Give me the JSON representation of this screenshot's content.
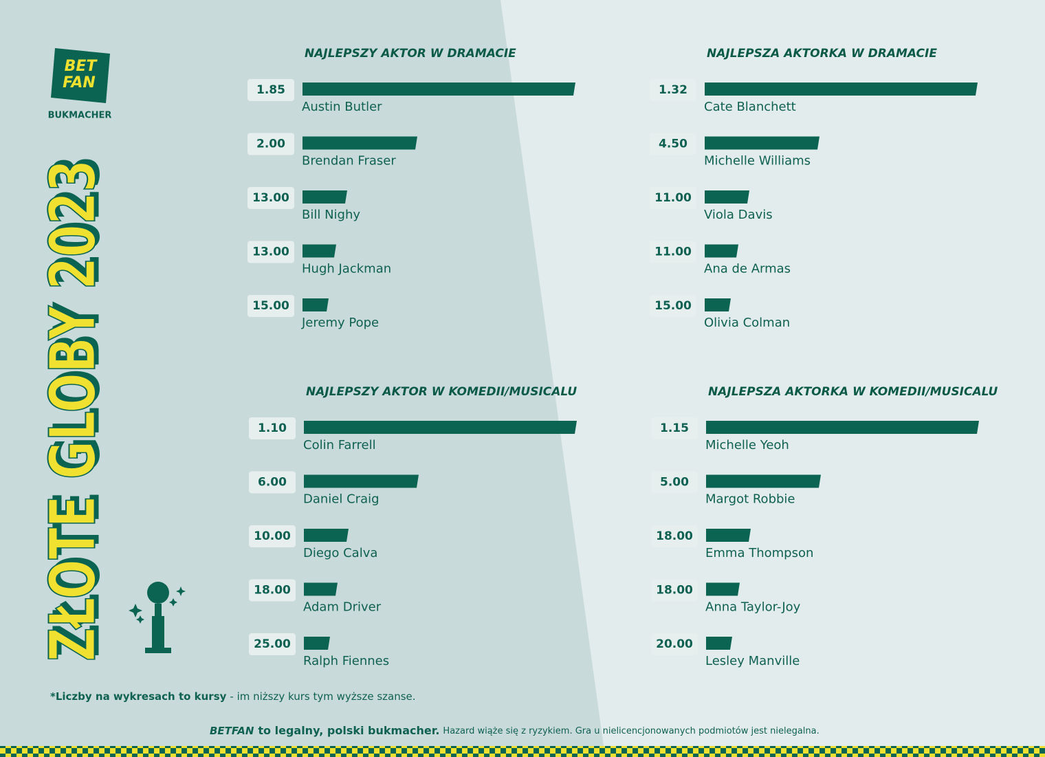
{
  "logo": {
    "line1": "BET",
    "line2": "FAN",
    "subtitle": "BUKMACHER"
  },
  "headline": "ZŁOTE GLOBY 2023",
  "footnote": {
    "bold": "*Liczby na wykresach to kursy",
    "rest": "- im niższy kurs tym wyższe szanse."
  },
  "footer": {
    "brand": "BETFAN",
    "bold": "to legalny, polski bukmacher.",
    "rest": "Hazard wiąże się z ryzykiem. Gra u nielicencjonowanych podmiotów jest nielegalna."
  },
  "chart_data": [
    {
      "type": "bar",
      "title": "NAJLEPSZY AKTOR W DRAMACIE",
      "color": "#0b6452",
      "categories": [
        "Austin Butler",
        "Brendan Fraser",
        "Bill Nighy",
        "Hugh Jackman",
        "Jeremy Pope"
      ],
      "values": [
        1.85,
        2,
        13,
        13,
        15
      ],
      "value_labels": [
        "1.85",
        "2.00",
        "13.00",
        "13.00",
        "15.00"
      ]
    },
    {
      "type": "bar",
      "title": "NAJLEPSZA AKTORKA W DRAMACIE",
      "color": "#0b6452",
      "categories": [
        "Cate Blanchett",
        "Michelle Williams",
        "Viola Davis",
        "Ana de Armas",
        "Olivia Colman"
      ],
      "values": [
        1.32,
        4.5,
        11,
        11,
        15
      ],
      "value_labels": [
        "1.32",
        "4.50",
        "11.00",
        "11.00",
        "15.00"
      ]
    },
    {
      "type": "bar",
      "title": "NAJLEPSZY AKTOR W KOMEDII/MUSICALU",
      "color": "#0b6452",
      "categories": [
        "Colin Farrell",
        "Daniel Craig",
        "Diego Calva",
        "Adam Driver",
        "Ralph Fiennes"
      ],
      "values": [
        1.1,
        6,
        10,
        18,
        25
      ],
      "value_labels": [
        "1.10",
        "6.00",
        "10.00",
        "18.00",
        "25.00"
      ]
    },
    {
      "type": "bar",
      "title": "NAJLEPSZA AKTORKA W KOMEDII/MUSICALU",
      "color": "#0b6452",
      "categories": [
        "Michelle Yeoh",
        "Margot Robbie",
        "Emma Thompson",
        "Anna Taylor-Joy",
        "Lesley Manville"
      ],
      "values": [
        1.15,
        5,
        18,
        18,
        20
      ],
      "value_labels": [
        "1.15",
        "5.00",
        "18.00",
        "18.00",
        "20.00"
      ]
    }
  ]
}
